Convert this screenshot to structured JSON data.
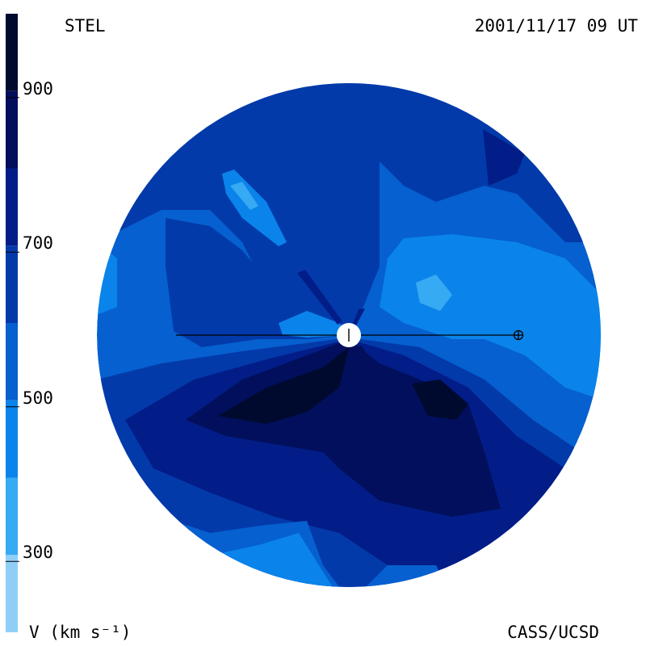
{
  "header": {
    "source": "STEL",
    "datetime": "2001/11/17 09 UT"
  },
  "footer": {
    "unit": "V (km s⁻¹)",
    "credit": "CASS/UCSD"
  },
  "colorbar": {
    "ticks": [
      "900",
      "700",
      "500",
      "300"
    ],
    "levels": [
      {
        "min": 200,
        "max": 300,
        "color": "#8fcff7"
      },
      {
        "min": 300,
        "max": 400,
        "color": "#36aaf2"
      },
      {
        "min": 400,
        "max": 500,
        "color": "#0a84ea"
      },
      {
        "min": 500,
        "max": 600,
        "color": "#0660cf"
      },
      {
        "min": 600,
        "max": 700,
        "color": "#033aaa"
      },
      {
        "min": 700,
        "max": 800,
        "color": "#021d87"
      },
      {
        "min": 800,
        "max": 900,
        "color": "#010f5c"
      },
      {
        "min": 900,
        "max": 1000,
        "color": "#000a2e"
      }
    ]
  },
  "map": {
    "quantity": "solar wind velocity",
    "sun_marker": "sun-disk-icon",
    "earth_marker": "earth-symbol-icon"
  }
}
